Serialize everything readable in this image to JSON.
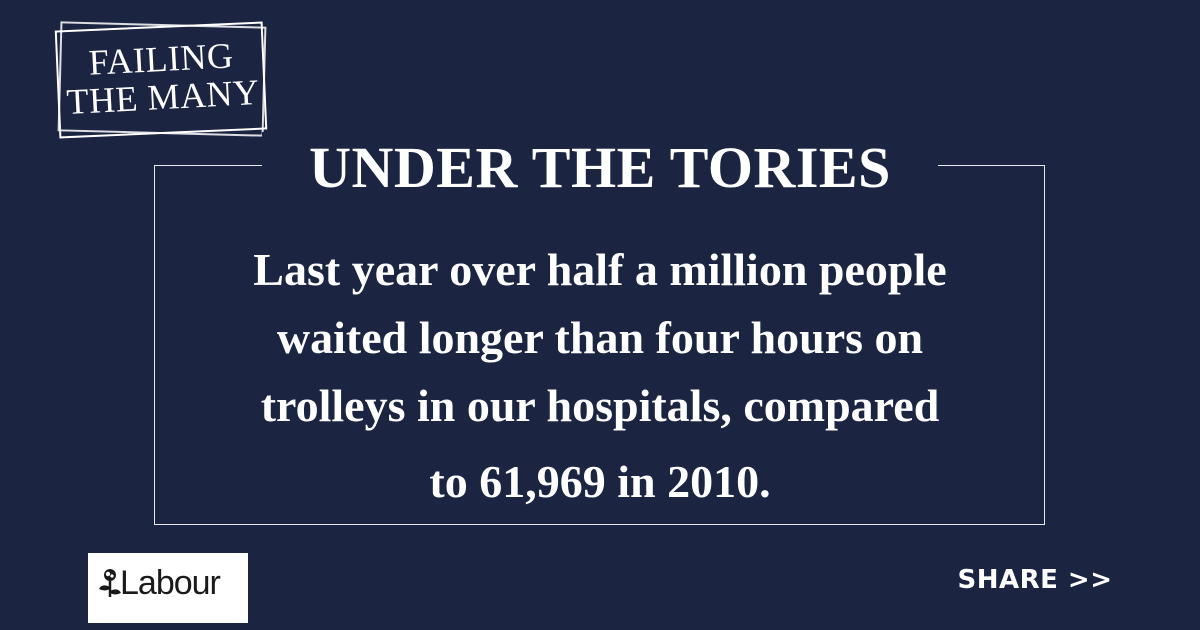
{
  "stamp": {
    "lines": [
      "FAILING",
      "THE MANY"
    ]
  },
  "panel": {
    "headline": "UNDER THE TORIES",
    "body_lines": [
      "Last year over half a million people",
      "waited longer than four hours on",
      "trolleys in our hospitals, compared",
      "to 61,969 in 2010."
    ]
  },
  "logo": {
    "wordmark": "Labour",
    "icon": "labour-rose-icon"
  },
  "share": {
    "label": "SHARE >>"
  },
  "colors": {
    "background": "#1b2542",
    "text": "#ffffff",
    "frame": "#e8e8ec"
  }
}
